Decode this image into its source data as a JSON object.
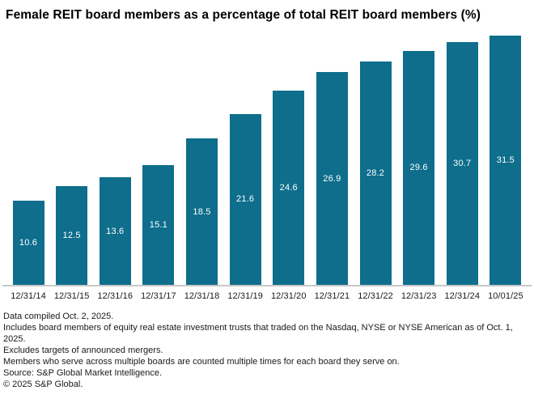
{
  "title": "Female REIT board members as a percentage of total REIT board members (%)",
  "chart_data": {
    "type": "bar",
    "title": "Female REIT board members as a percentage of total REIT board members (%)",
    "categories": [
      "12/31/14",
      "12/31/15",
      "12/31/16",
      "12/31/17",
      "12/31/18",
      "12/31/19",
      "12/31/20",
      "12/31/21",
      "12/31/22",
      "12/31/23",
      "12/31/24",
      "10/01/25"
    ],
    "values": [
      10.6,
      12.5,
      13.6,
      15.1,
      18.5,
      21.6,
      24.6,
      26.9,
      28.2,
      29.6,
      30.7,
      31.5
    ],
    "xlabel": "",
    "ylabel": "",
    "ylim": [
      0,
      31.5
    ],
    "grid": false,
    "legend": false,
    "data_labels": "inside-center",
    "bar_color": "#0e6e8c",
    "data_label_color": "#ffffff",
    "axis_line_color": "#c8c8c8"
  },
  "footnotes": [
    "Data compiled Oct. 2, 2025.",
    "Includes board members of equity real estate investment trusts that traded on the Nasdaq, NYSE or NYSE American as of Oct. 1, 2025.",
    "Excludes targets of announced mergers.",
    "Members who serve across multiple boards are counted multiple times for each board they serve on.",
    "Source: S&P Global Market Intelligence.",
    "© 2025 S&P Global."
  ]
}
